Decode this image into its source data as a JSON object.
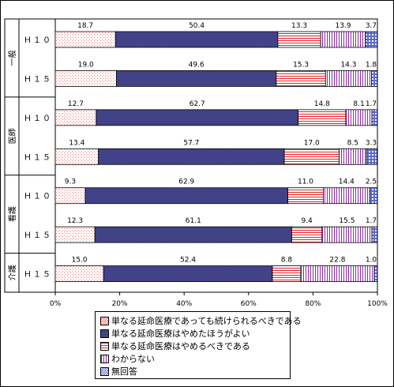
{
  "chart_data": {
    "type": "bar",
    "stacked": true,
    "orientation": "horizontal",
    "percent_scale": true,
    "groups": [
      {
        "label": "一般",
        "rows": [
          "Ｈ１０",
          "Ｈ１５"
        ]
      },
      {
        "label": "医師",
        "rows": [
          "Ｈ１０",
          "Ｈ１５"
        ]
      },
      {
        "label": "看護",
        "rows": [
          "Ｈ１０",
          "Ｈ１５"
        ]
      },
      {
        "label": "介護",
        "rows": [
          "Ｈ１５"
        ]
      }
    ],
    "categories": [
      "Ｈ１０",
      "Ｈ１５",
      "Ｈ１０",
      "Ｈ１５",
      "Ｈ１０",
      "Ｈ１５",
      "Ｈ１５"
    ],
    "series": [
      {
        "name": "単なる延命医療であっても続けられるべきである",
        "values": [
          18.7,
          19.0,
          12.7,
          13.4,
          9.3,
          12.3,
          15.0
        ]
      },
      {
        "name": "単なる延命医療はやめたほうがよい",
        "values": [
          50.4,
          49.6,
          62.7,
          57.7,
          62.9,
          61.1,
          52.4
        ]
      },
      {
        "name": "単なる延命医療はやめるべきである",
        "values": [
          13.3,
          15.3,
          14.8,
          17.0,
          11.0,
          9.4,
          8.8
        ]
      },
      {
        "name": "わからない",
        "values": [
          13.9,
          14.3,
          8.1,
          8.5,
          14.4,
          15.5,
          22.8
        ]
      },
      {
        "name": "無回答",
        "values": [
          3.7,
          1.8,
          1.7,
          3.3,
          2.5,
          1.7,
          1.0
        ]
      }
    ],
    "xlim": [
      0,
      100
    ],
    "xticks": [
      "0%",
      "20%",
      "40%",
      "60%",
      "80%",
      "100%"
    ],
    "grid": false,
    "legend_position": "bottom"
  }
}
